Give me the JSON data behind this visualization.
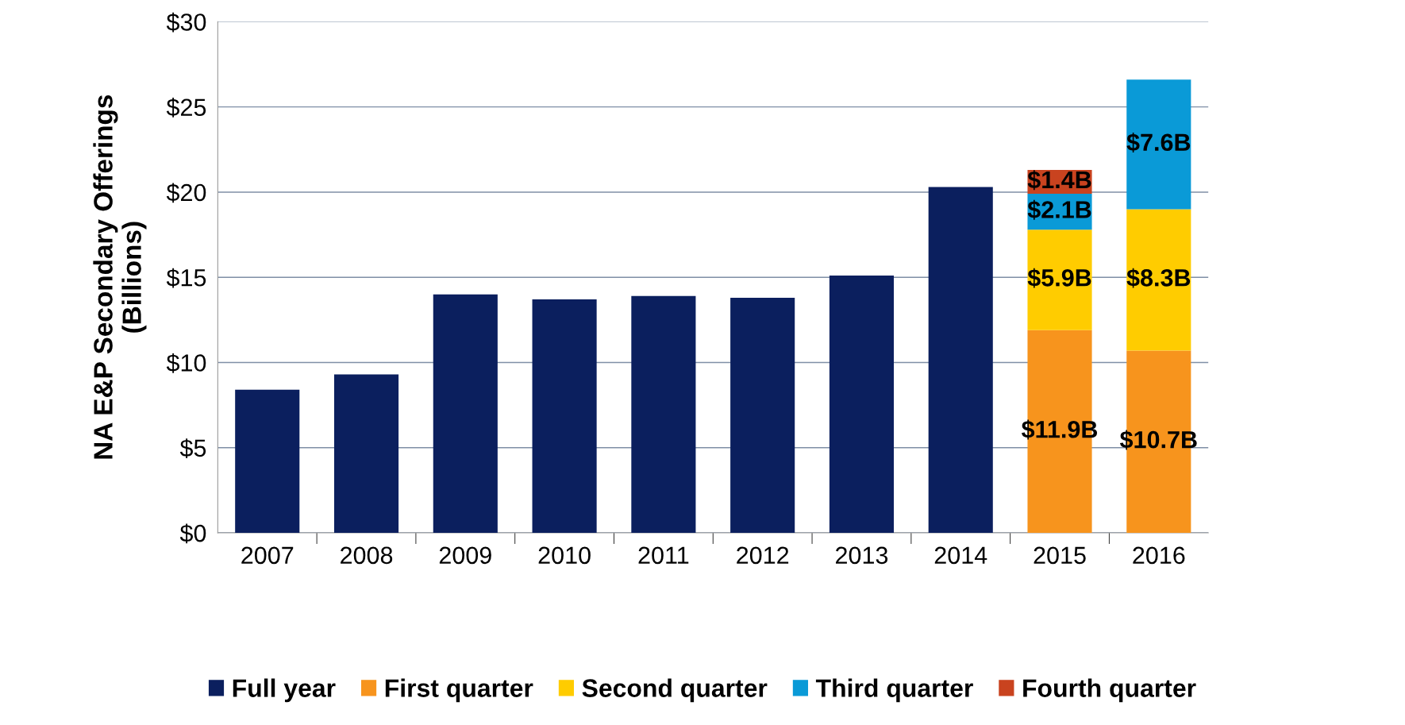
{
  "chart_data": {
    "type": "bar",
    "stacked": true,
    "ylabel": "NA E&P Secondary Offerings\n(Billions)",
    "categories": [
      "2007",
      "2008",
      "2009",
      "2010",
      "2011",
      "2012",
      "2013",
      "2014",
      "2015",
      "2016"
    ],
    "series": [
      {
        "name": "Full year",
        "color": "#0b1f5e",
        "values": [
          8.4,
          9.3,
          14.0,
          13.7,
          13.9,
          13.8,
          15.1,
          20.3,
          null,
          null
        ]
      },
      {
        "name": "First quarter",
        "color": "#f7941d",
        "values": [
          null,
          null,
          null,
          null,
          null,
          null,
          null,
          null,
          11.9,
          10.7
        ],
        "value_labels": [
          null,
          null,
          null,
          null,
          null,
          null,
          null,
          null,
          "$11.9B",
          "$10.7B"
        ]
      },
      {
        "name": "Second quarter",
        "color": "#ffcc00",
        "values": [
          null,
          null,
          null,
          null,
          null,
          null,
          null,
          null,
          5.9,
          8.3
        ],
        "value_labels": [
          null,
          null,
          null,
          null,
          null,
          null,
          null,
          null,
          "$5.9B",
          "$8.3B"
        ]
      },
      {
        "name": "Third quarter",
        "color": "#0a9ad7",
        "values": [
          null,
          null,
          null,
          null,
          null,
          null,
          null,
          null,
          2.1,
          7.6
        ],
        "value_labels": [
          null,
          null,
          null,
          null,
          null,
          null,
          null,
          null,
          "$2.1B",
          "$7.6B"
        ]
      },
      {
        "name": "Fourth quarter",
        "color": "#c9431f",
        "values": [
          null,
          null,
          null,
          null,
          null,
          null,
          null,
          null,
          1.4,
          null
        ],
        "value_labels": [
          null,
          null,
          null,
          null,
          null,
          null,
          null,
          null,
          "$1.4B",
          null
        ]
      }
    ],
    "ylim": [
      0,
      30
    ],
    "yticks": [
      {
        "value": 0,
        "label": "$0"
      },
      {
        "value": 5,
        "label": "$5"
      },
      {
        "value": 10,
        "label": "$10"
      },
      {
        "value": 15,
        "label": "$15"
      },
      {
        "value": 20,
        "label": "$20"
      },
      {
        "value": 25,
        "label": "$25"
      },
      {
        "value": 30,
        "label": "$30"
      }
    ],
    "grid": "y",
    "legend": "bottom"
  }
}
